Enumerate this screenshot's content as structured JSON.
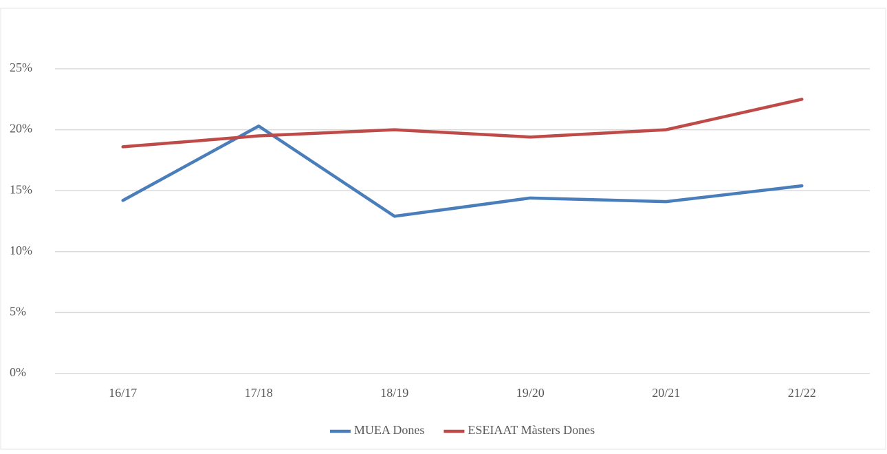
{
  "chart_data": {
    "type": "line",
    "categories": [
      "16/17",
      "17/18",
      "18/19",
      "19/20",
      "20/21",
      "21/22"
    ],
    "series": [
      {
        "name": "MUEA Dones",
        "color": "#4a7ebb",
        "values": [
          14.2,
          20.3,
          12.9,
          14.4,
          14.1,
          15.4
        ]
      },
      {
        "name": "ESEIAAT Màsters Dones",
        "color": "#be4b48",
        "values": [
          18.6,
          19.5,
          20.0,
          19.4,
          20.0,
          22.5
        ]
      }
    ],
    "ylim": [
      0,
      25
    ],
    "yticks": [
      {
        "value": 0,
        "label": "0%"
      },
      {
        "value": 5,
        "label": "5%"
      },
      {
        "value": 10,
        "label": "10%"
      },
      {
        "value": 15,
        "label": "15%"
      },
      {
        "value": 20,
        "label": "20%"
      },
      {
        "value": 25,
        "label": "25%"
      }
    ],
    "grid": true,
    "legend": "bottom"
  }
}
